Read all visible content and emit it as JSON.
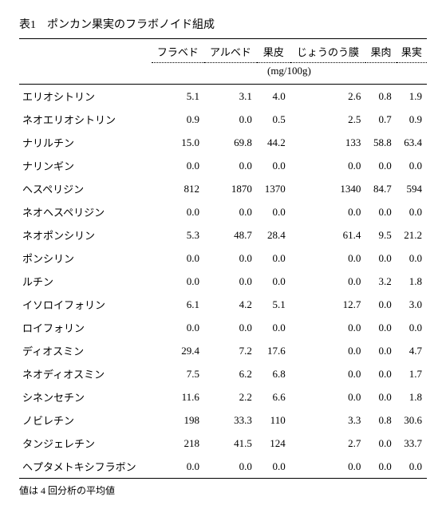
{
  "title": "表1　ポンカン果実のフラボノイド組成",
  "columns": [
    "フラベド",
    "アルベド",
    "果皮",
    "じょうのう膜",
    "果肉",
    "果実"
  ],
  "unit": "(mg/100g)",
  "rows": [
    {
      "label": "エリオシトリン",
      "v": [
        "5.1",
        "3.1",
        "4.0",
        "2.6",
        "0.8",
        "1.9"
      ]
    },
    {
      "label": "ネオエリオシトリン",
      "v": [
        "0.9",
        "0.0",
        "0.5",
        "2.5",
        "0.7",
        "0.9"
      ]
    },
    {
      "label": "ナリルチン",
      "v": [
        "15.0",
        "69.8",
        "44.2",
        "133",
        "58.8",
        "63.4"
      ]
    },
    {
      "label": "ナリンギン",
      "v": [
        "0.0",
        "0.0",
        "0.0",
        "0.0",
        "0.0",
        "0.0"
      ]
    },
    {
      "label": "ヘスペリジン",
      "v": [
        "812",
        "1870",
        "1370",
        "1340",
        "84.7",
        "594"
      ]
    },
    {
      "label": "ネオヘスペリジン",
      "v": [
        "0.0",
        "0.0",
        "0.0",
        "0.0",
        "0.0",
        "0.0"
      ]
    },
    {
      "label": "ネオポンシリン",
      "v": [
        "5.3",
        "48.7",
        "28.4",
        "61.4",
        "9.5",
        "21.2"
      ]
    },
    {
      "label": "ポンシリン",
      "v": [
        "0.0",
        "0.0",
        "0.0",
        "0.0",
        "0.0",
        "0.0"
      ]
    },
    {
      "label": "ルチン",
      "v": [
        "0.0",
        "0.0",
        "0.0",
        "0.0",
        "3.2",
        "1.8"
      ]
    },
    {
      "label": "イソロイフォリン",
      "v": [
        "6.1",
        "4.2",
        "5.1",
        "12.7",
        "0.0",
        "3.0"
      ]
    },
    {
      "label": "ロイフォリン",
      "v": [
        "0.0",
        "0.0",
        "0.0",
        "0.0",
        "0.0",
        "0.0"
      ]
    },
    {
      "label": "ディオスミン",
      "v": [
        "29.4",
        "7.2",
        "17.6",
        "0.0",
        "0.0",
        "4.7"
      ]
    },
    {
      "label": "ネオディオスミン",
      "v": [
        "7.5",
        "6.2",
        "6.8",
        "0.0",
        "0.0",
        "1.7"
      ]
    },
    {
      "label": "シネンセチン",
      "v": [
        "11.6",
        "2.2",
        "6.6",
        "0.0",
        "0.0",
        "1.8"
      ]
    },
    {
      "label": "ノビレチン",
      "v": [
        "198",
        "33.3",
        "110",
        "3.3",
        "0.8",
        "30.6"
      ]
    },
    {
      "label": "タンジェレチン",
      "v": [
        "218",
        "41.5",
        "124",
        "2.7",
        "0.0",
        "33.7"
      ]
    },
    {
      "label": "ヘプタメトキシフラボン",
      "v": [
        "0.0",
        "0.0",
        "0.0",
        "0.0",
        "0.0",
        "0.0"
      ]
    }
  ],
  "footnote": "値は 4 回分析の平均値"
}
